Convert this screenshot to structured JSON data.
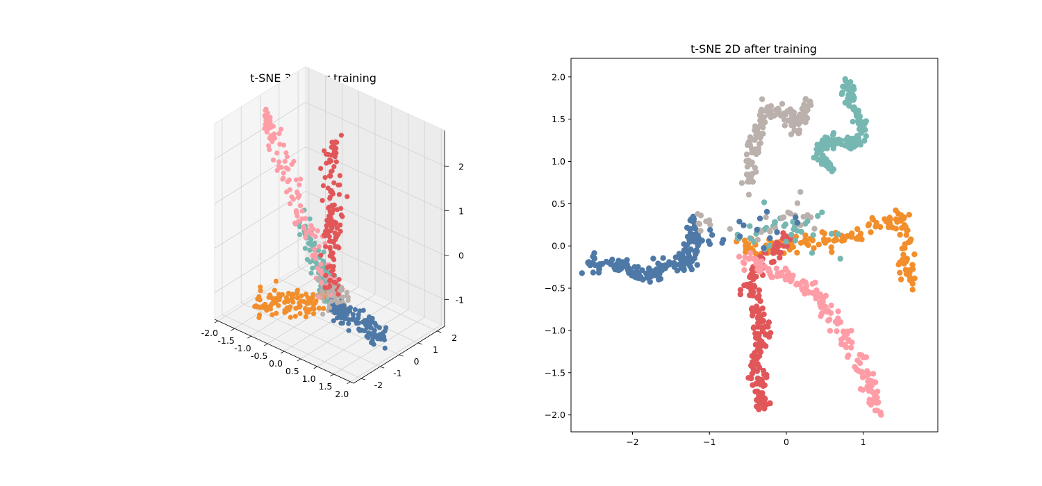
{
  "figure": {
    "background": "#ffffff",
    "palette": {
      "blue": "#4e79a7",
      "orange": "#f28e2b",
      "red": "#e15759",
      "teal": "#76b7b2",
      "pink": "#ff9da7",
      "taupe": "#bab0ac"
    }
  },
  "chart_data": [
    {
      "type": "scatter",
      "projection": "3d",
      "title": "t-SNE 3D after training",
      "xlabel": "",
      "ylabel": "",
      "zlabel": "",
      "x_ticks": [
        "-2.0",
        "-1.5",
        "-1.0",
        "-0.5",
        "0.0",
        "0.5",
        "1.0",
        "1.5",
        "2.0"
      ],
      "y_ticks": [
        "-2",
        "-1",
        "0",
        "1",
        "2"
      ],
      "z_ticks": [
        "-1",
        "0",
        "1",
        "2"
      ],
      "xlim": [
        -2.1,
        2.1
      ],
      "ylim": [
        -2.4,
        2.4
      ],
      "zlim": [
        -1.6,
        2.8
      ],
      "grid": true,
      "legend": "none",
      "clusters": [
        {
          "color_key": "pink",
          "n": 110,
          "from": [
            0.0,
            0.0,
            -0.9
          ],
          "to": [
            -1.9,
            -0.2,
            2.6
          ],
          "spread": 0.12
        },
        {
          "color_key": "red",
          "n": 130,
          "from": [
            0.1,
            0.0,
            -0.9
          ],
          "to": [
            0.05,
            0.05,
            2.45
          ],
          "spread": 0.12
        },
        {
          "color_key": "teal",
          "n": 80,
          "from": [
            0.0,
            0.0,
            -1.0
          ],
          "to": [
            -1.3,
            0.7,
            0.15
          ],
          "spread": 0.12
        },
        {
          "color_key": "orange",
          "n": 110,
          "from": [
            -0.1,
            0.1,
            -1.2
          ],
          "to": [
            -1.7,
            -0.8,
            -1.5
          ],
          "spread": 0.14
        },
        {
          "color_key": "blue",
          "n": 110,
          "from": [
            0.15,
            0.0,
            -1.2
          ],
          "to": [
            2.0,
            -0.6,
            -1.1
          ],
          "spread": 0.12
        },
        {
          "color_key": "taupe",
          "n": 90,
          "from": [
            -0.15,
            0.0,
            -0.85
          ],
          "to": [
            0.25,
            0.1,
            -1.05
          ],
          "spread": 0.15
        }
      ]
    },
    {
      "type": "scatter",
      "title": "t-SNE 2D after training",
      "xlabel": "",
      "ylabel": "",
      "xlim": [
        -2.8,
        1.97
      ],
      "ylim": [
        -2.2,
        2.22
      ],
      "x_ticks": [
        -2,
        -1,
        0,
        1
      ],
      "y_ticks": [
        -2.0,
        -1.5,
        -1.0,
        -0.5,
        0.0,
        0.5,
        1.0,
        1.5,
        2.0
      ],
      "x_tick_labels": [
        "−2",
        "−1",
        "0",
        "1"
      ],
      "y_tick_labels": [
        "−2.0",
        "−1.5",
        "−1.0",
        "−0.5",
        "0.0",
        "0.5",
        "1.0",
        "1.5",
        "2.0"
      ],
      "grid": false,
      "legend": "none",
      "clusters": [
        {
          "color_key": "blue",
          "n": 170,
          "spread": 0.05,
          "path": [
            [
              -2.6,
              -0.2
            ],
            [
              -2.3,
              -0.2
            ],
            [
              -2.0,
              -0.28
            ],
            [
              -1.75,
              -0.36
            ],
            [
              -1.5,
              -0.2
            ],
            [
              -1.25,
              -0.2
            ],
            [
              -1.22,
              0.05
            ],
            [
              -1.2,
              0.3
            ]
          ]
        },
        {
          "color_key": "orange",
          "n": 150,
          "spread": 0.05,
          "path": [
            [
              -0.6,
              0.0
            ],
            [
              0.0,
              0.0
            ],
            [
              0.6,
              0.07
            ],
            [
              1.05,
              0.15
            ],
            [
              1.35,
              0.3
            ],
            [
              1.5,
              0.4
            ],
            [
              1.55,
              0.1
            ],
            [
              1.55,
              -0.2
            ],
            [
              1.65,
              -0.45
            ]
          ]
        },
        {
          "color_key": "red",
          "n": 180,
          "spread": 0.05,
          "path": [
            [
              0.05,
              0.1
            ],
            [
              -0.25,
              -0.15
            ],
            [
              -0.5,
              -0.4
            ],
            [
              -0.4,
              -0.7
            ],
            [
              -0.33,
              -1.0
            ],
            [
              -0.38,
              -1.3
            ],
            [
              -0.38,
              -1.65
            ],
            [
              -0.3,
              -1.9
            ]
          ]
        },
        {
          "color_key": "pink",
          "n": 170,
          "spread": 0.05,
          "path": [
            [
              -0.6,
              -0.15
            ],
            [
              0.05,
              -0.38
            ],
            [
              0.4,
              -0.55
            ],
            [
              0.6,
              -0.85
            ],
            [
              0.8,
              -1.1
            ],
            [
              0.95,
              -1.35
            ],
            [
              1.08,
              -1.65
            ],
            [
              1.15,
              -1.95
            ]
          ]
        },
        {
          "color_key": "teal",
          "n": 170,
          "spread": 0.04,
          "path": [
            [
              0.6,
              0.9
            ],
            [
              0.4,
              1.1
            ],
            [
              0.55,
              1.25
            ],
            [
              0.9,
              1.2
            ],
            [
              1.0,
              1.4
            ],
            [
              0.85,
              1.7
            ],
            [
              0.8,
              1.95
            ]
          ]
        },
        {
          "color_key": "taupe",
          "n": 150,
          "spread": 0.045,
          "path": [
            [
              -0.45,
              0.75
            ],
            [
              -0.45,
              1.0
            ],
            [
              -0.4,
              1.3
            ],
            [
              -0.25,
              1.6
            ],
            [
              0.05,
              1.55
            ],
            [
              0.1,
              1.4
            ],
            [
              0.3,
              1.7
            ]
          ]
        },
        {
          "color_key": "teal",
          "n": 40,
          "spread": 0.12,
          "path": [
            [
              -0.6,
              0.1
            ],
            [
              0.0,
              0.25
            ],
            [
              0.4,
              0.2
            ],
            [
              0.55,
              0.05
            ]
          ]
        },
        {
          "color_key": "taupe",
          "n": 30,
          "spread": 0.1,
          "path": [
            [
              -1.2,
              0.3
            ],
            [
              -0.3,
              0.2
            ],
            [
              0.2,
              0.35
            ],
            [
              0.35,
              0.3
            ]
          ]
        },
        {
          "color_key": "blue",
          "n": 18,
          "spread": 0.1,
          "path": [
            [
              -1.0,
              0.05
            ],
            [
              -0.5,
              0.2
            ],
            [
              0.1,
              0.25
            ]
          ]
        }
      ]
    }
  ]
}
